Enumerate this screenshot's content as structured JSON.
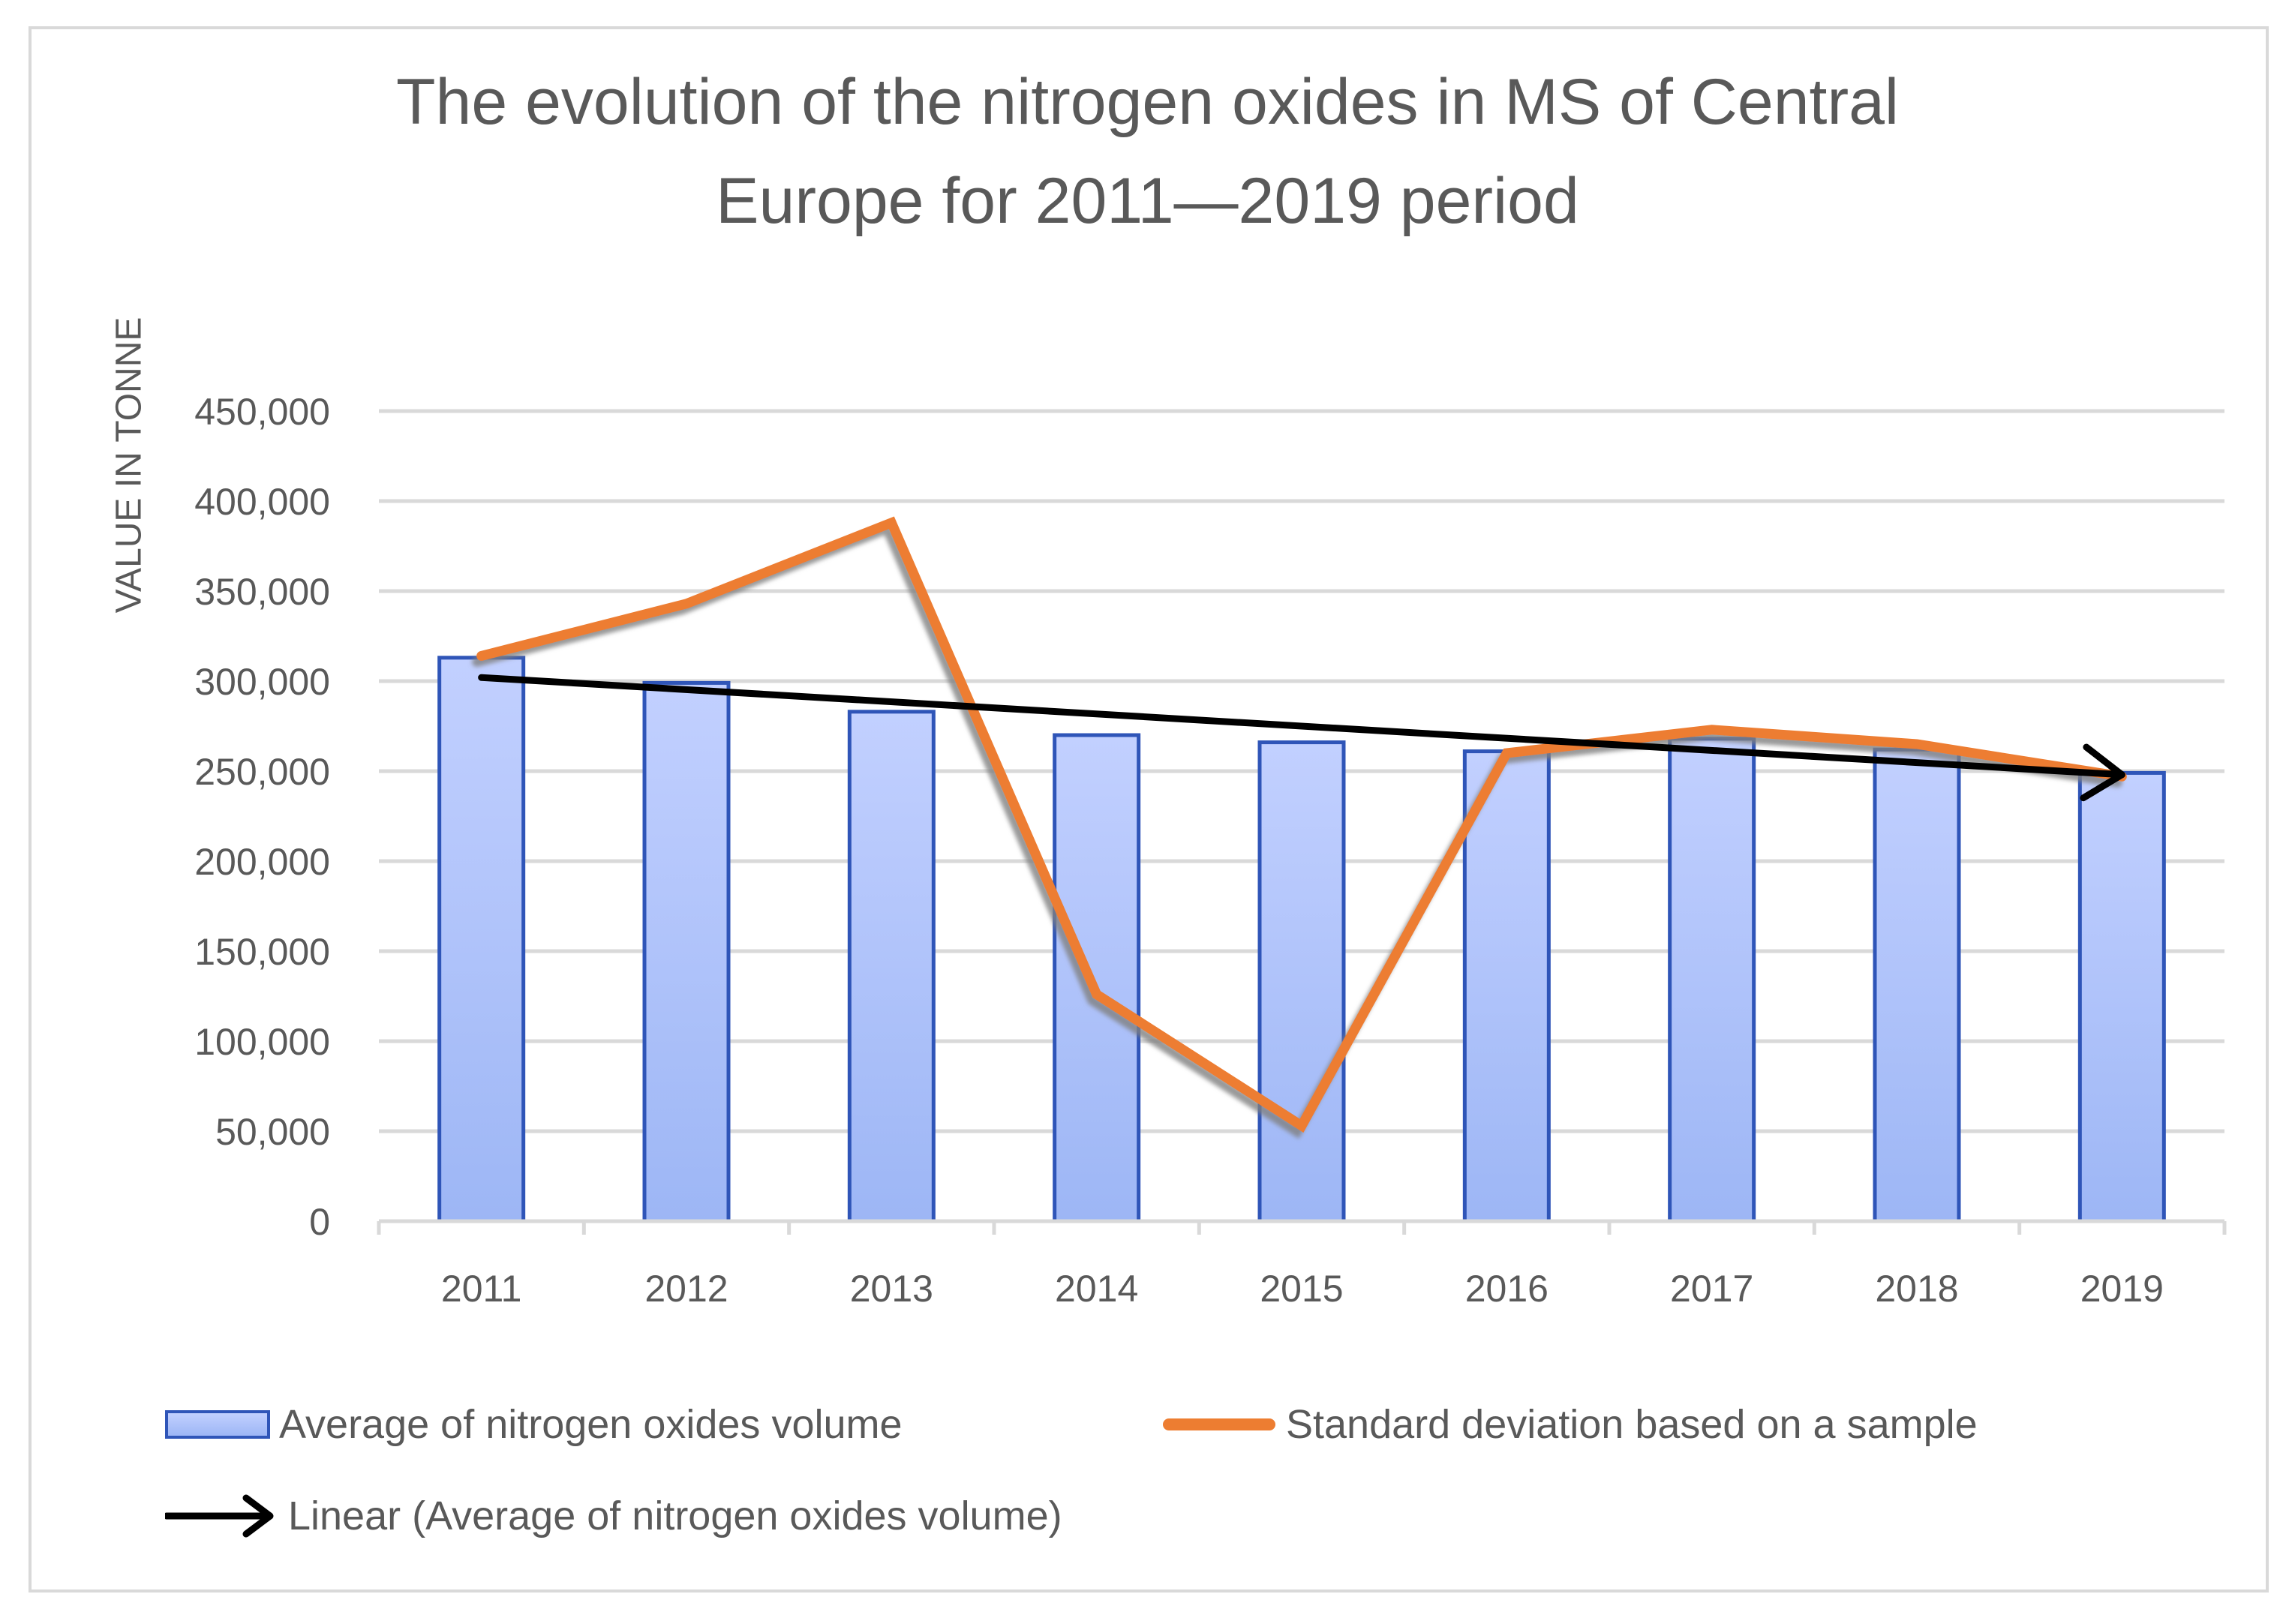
{
  "chart_data": {
    "type": "bar",
    "title_lines": [
      "The evolution of the nitrogen oxides in MS of Central",
      "Europe for 2011—2019 period"
    ],
    "ylabel": "VALUE IN TONNE",
    "xlabel": "",
    "ylim": [
      0,
      450000
    ],
    "y_ticks": [
      0,
      50000,
      100000,
      150000,
      200000,
      250000,
      300000,
      350000,
      400000,
      450000
    ],
    "y_tick_labels": [
      "0",
      "50,000",
      "100,000",
      "150,000",
      "200,000",
      "250,000",
      "300,000",
      "350,000",
      "400,000",
      "450,000"
    ],
    "categories": [
      "2011",
      "2012",
      "2013",
      "2014",
      "2015",
      "2016",
      "2017",
      "2018",
      "2019"
    ],
    "grid": true,
    "series": [
      {
        "name": "Average of nitrogen oxides volume",
        "type": "bar",
        "values": [
          313000,
          299000,
          283000,
          270000,
          266000,
          261000,
          268000,
          262000,
          249000
        ],
        "color": "#2f55b8",
        "fill_top": "#c2d0ff",
        "fill_bottom": "#9db6f5"
      },
      {
        "name": "Standard deviation based on a sample",
        "type": "line",
        "values": [
          314000,
          343000,
          388000,
          126000,
          53000,
          260000,
          273000,
          265000,
          247000
        ],
        "color": "#ed7d31"
      },
      {
        "name": "Linear (Average of nitrogen oxides volume)",
        "type": "trendline",
        "values": [
          302000,
          295500,
          289000,
          282500,
          276000,
          269500,
          263000,
          256500,
          248000
        ],
        "color": "#000000"
      }
    ],
    "legend_position": "bottom"
  }
}
